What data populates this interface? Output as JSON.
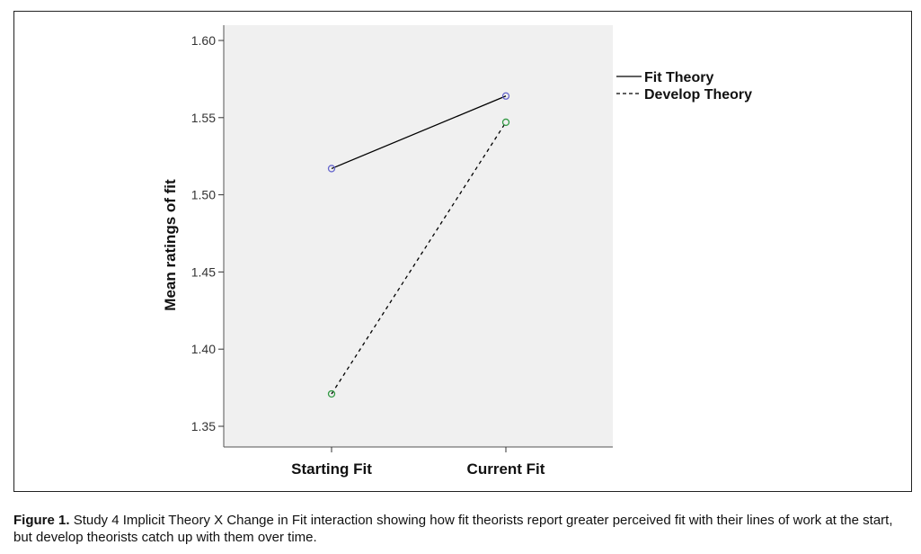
{
  "chart_data": {
    "type": "line",
    "categories": [
      "Starting Fit",
      "Current Fit"
    ],
    "series": [
      {
        "name": "Fit Theory",
        "values": [
          1.517,
          1.564
        ],
        "color": "#000000",
        "marker_color": "#6666cc",
        "dash": "solid"
      },
      {
        "name": "Develop Theory",
        "values": [
          1.371,
          1.547
        ],
        "color": "#000000",
        "marker_color": "#339944",
        "dash": "dashed"
      }
    ],
    "ylabel": "Mean ratings of fit",
    "xlabel": "",
    "ylim": [
      1.33,
      1.61
    ],
    "yticks": [
      1.35,
      1.4,
      1.45,
      1.5,
      1.55,
      1.6
    ],
    "ytick_labels": [
      "1.35",
      "1.40",
      "1.45",
      "1.50",
      "1.55",
      "1.60"
    ],
    "legend_position": "top-right",
    "grid": false,
    "plot_background": "#f0f0f0"
  },
  "caption": {
    "label": "Figure 1.",
    "text": "Study 4 Implicit Theory X Change in Fit interaction showing how fit theorists report greater perceived fit with their lines of work at the start, but develop theorists catch up with them over time."
  }
}
